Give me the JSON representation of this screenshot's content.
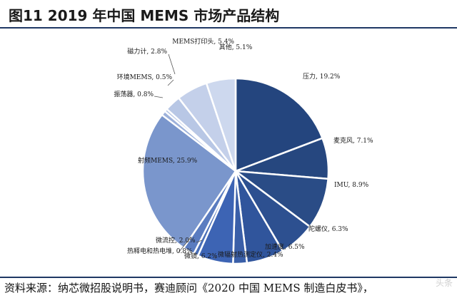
{
  "header": {
    "title": "图11 2019 年中国 MEMS 市场产品结构"
  },
  "footer": {
    "source": "资料来源：纳芯微招股说明书，赛迪顾问《2020 中国 MEMS 制造白皮书》，",
    "watermark": "头条"
  },
  "chart_data": {
    "type": "pie",
    "start": "12 o'clock",
    "direction": "clockwise",
    "slices": [
      {
        "label": "压力, 19.2%",
        "value": 19.2,
        "color": "#24457e"
      },
      {
        "label": "麦克风, 7.1%",
        "value": 7.1,
        "color": "#26477f"
      },
      {
        "label": "IMU, 8.9%",
        "value": 8.9,
        "color": "#2a4c86"
      },
      {
        "label": "陀螺仪, 6.3%",
        "value": 6.3,
        "color": "#2d5090"
      },
      {
        "label": "加速度, 6.5%",
        "value": 6.5,
        "color": "#30559c"
      },
      {
        "label": "微辐射热测定仪, 2.4%",
        "value": 2.4,
        "color": "#3a5fa8"
      },
      {
        "label": "微镜, 6.2%",
        "value": 6.2,
        "color": "#3d64b4"
      },
      {
        "label": "热释电和热电堆, 0.8%",
        "value": 0.8,
        "color": "#4a6fb8"
      },
      {
        "label": "微流控, 2.0%",
        "value": 2.0,
        "color": "#5a7cc0"
      },
      {
        "label": "射频MEMS, 25.9%",
        "value": 25.9,
        "color": "#7a96cc"
      },
      {
        "label": "振荡器, 0.8%",
        "value": 0.8,
        "color": "#9db1da"
      },
      {
        "label": "环境MEMS, 0.5%",
        "value": 0.5,
        "color": "#aebfe1"
      },
      {
        "label": "磁力计, 2.8%",
        "value": 2.8,
        "color": "#b8c7e5"
      },
      {
        "label": "MEMS打印头, 5.4%",
        "value": 5.4,
        "color": "#c4d0ea"
      },
      {
        "label": "其他, 5.1%",
        "value": 5.1,
        "color": "#cdd8ee"
      }
    ]
  }
}
